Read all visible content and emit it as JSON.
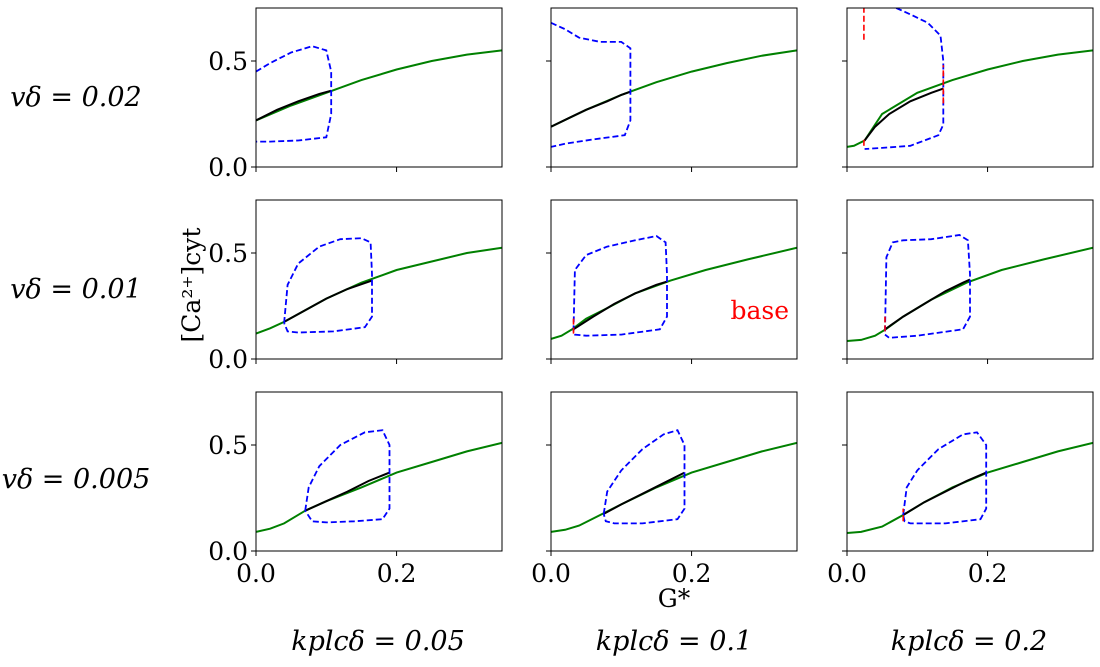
{
  "figure": {
    "y_axis_label": "[Ca²⁺]cyt",
    "x_axis_label": "G*",
    "annotation": "base"
  },
  "rows": [
    {
      "label": "vδ = 0.02"
    },
    {
      "label": "vδ = 0.01"
    },
    {
      "label": "vδ = 0.005"
    }
  ],
  "cols": [
    {
      "label": "kplcδ = 0.05"
    },
    {
      "label": "kplcδ = 0.1"
    },
    {
      "label": "kplcδ = 0.2"
    }
  ],
  "ticks": {
    "x": [
      "0.0",
      "0.2"
    ],
    "y": [
      "0.0",
      "0.5"
    ]
  },
  "colors": {
    "stable": "#008000",
    "unstable": "#000000",
    "periodic": "#0000ff",
    "other_branch": "#ff0000",
    "annotation": "#ff0000"
  },
  "chart_data": [
    {
      "type": "line",
      "row": 0,
      "col": 0,
      "xlim": [
        0,
        0.35
      ],
      "ylim": [
        0,
        0.75
      ],
      "green": [
        [
          0,
          0.22
        ],
        [
          0.05,
          0.29
        ],
        [
          0.1,
          0.35
        ],
        [
          0.15,
          0.41
        ],
        [
          0.2,
          0.46
        ],
        [
          0.25,
          0.5
        ],
        [
          0.3,
          0.53
        ],
        [
          0.35,
          0.55
        ]
      ],
      "black": [
        [
          0,
          0.22
        ],
        [
          0.03,
          0.27
        ],
        [
          0.06,
          0.31
        ],
        [
          0.09,
          0.345
        ],
        [
          0.107,
          0.36
        ]
      ],
      "blue": [
        [
          0,
          0.45
        ],
        [
          0.02,
          0.49
        ],
        [
          0.05,
          0.54
        ],
        [
          0.08,
          0.57
        ],
        [
          0.1,
          0.55
        ],
        [
          0.107,
          0.45
        ],
        [
          0.107,
          0.25
        ],
        [
          0.1,
          0.14
        ],
        [
          0.06,
          0.125
        ],
        [
          0.02,
          0.12
        ],
        [
          0,
          0.12
        ]
      ],
      "red": []
    },
    {
      "type": "line",
      "row": 0,
      "col": 1,
      "xlim": [
        0,
        0.35
      ],
      "ylim": [
        0,
        0.75
      ],
      "green": [
        [
          0,
          0.19
        ],
        [
          0.05,
          0.27
        ],
        [
          0.1,
          0.34
        ],
        [
          0.15,
          0.4
        ],
        [
          0.2,
          0.45
        ],
        [
          0.25,
          0.49
        ],
        [
          0.3,
          0.525
        ],
        [
          0.35,
          0.55
        ]
      ],
      "black": [
        [
          0,
          0.19
        ],
        [
          0.025,
          0.23
        ],
        [
          0.05,
          0.27
        ],
        [
          0.08,
          0.31
        ],
        [
          0.1,
          0.34
        ],
        [
          0.113,
          0.355
        ]
      ],
      "blue": [
        [
          0,
          0.68
        ],
        [
          0.02,
          0.65
        ],
        [
          0.04,
          0.61
        ],
        [
          0.07,
          0.59
        ],
        [
          0.1,
          0.59
        ],
        [
          0.113,
          0.56
        ],
        [
          0.113,
          0.22
        ],
        [
          0.105,
          0.15
        ],
        [
          0.06,
          0.13
        ],
        [
          0.02,
          0.11
        ],
        [
          0,
          0.095
        ]
      ],
      "red": []
    },
    {
      "type": "line",
      "row": 0,
      "col": 2,
      "xlim": [
        0,
        0.35
      ],
      "ylim": [
        0,
        0.75
      ],
      "green": [
        [
          0,
          0.095
        ],
        [
          0.01,
          0.1
        ],
        [
          0.025,
          0.125
        ],
        [
          0.05,
          0.25
        ],
        [
          0.1,
          0.35
        ],
        [
          0.15,
          0.41
        ],
        [
          0.2,
          0.46
        ],
        [
          0.25,
          0.5
        ],
        [
          0.3,
          0.53
        ],
        [
          0.35,
          0.55
        ]
      ],
      "black": [
        [
          0.025,
          0.125
        ],
        [
          0.04,
          0.19
        ],
        [
          0.06,
          0.25
        ],
        [
          0.09,
          0.31
        ],
        [
          0.12,
          0.35
        ],
        [
          0.137,
          0.37
        ]
      ],
      "blue": [
        [
          0.07,
          0.75
        ],
        [
          0.09,
          0.72
        ],
        [
          0.115,
          0.68
        ],
        [
          0.133,
          0.62
        ],
        [
          0.137,
          0.5
        ],
        [
          0.137,
          0.2
        ],
        [
          0.13,
          0.15
        ],
        [
          0.09,
          0.1
        ],
        [
          0.05,
          0.09
        ],
        [
          0.025,
          0.085
        ]
      ],
      "red": [
        [
          [
            0.024,
            0.6
          ],
          [
            0.024,
            0.75
          ]
        ],
        [
          [
            0.137,
            0.3
          ],
          [
            0.137,
            0.48
          ]
        ],
        [
          [
            0.024,
            0.1
          ],
          [
            0.024,
            0.135
          ]
        ]
      ]
    },
    {
      "type": "line",
      "row": 1,
      "col": 0,
      "xlim": [
        0,
        0.35
      ],
      "ylim": [
        0,
        0.75
      ],
      "green": [
        [
          0,
          0.12
        ],
        [
          0.02,
          0.145
        ],
        [
          0.04,
          0.175
        ],
        [
          0.07,
          0.23
        ],
        [
          0.1,
          0.285
        ],
        [
          0.15,
          0.36
        ],
        [
          0.2,
          0.42
        ],
        [
          0.25,
          0.46
        ],
        [
          0.3,
          0.5
        ],
        [
          0.35,
          0.525
        ]
      ],
      "black": [
        [
          0.04,
          0.175
        ],
        [
          0.07,
          0.23
        ],
        [
          0.1,
          0.285
        ],
        [
          0.13,
          0.33
        ],
        [
          0.165,
          0.37
        ]
      ],
      "blue": [
        [
          0.04,
          0.17
        ],
        [
          0.045,
          0.35
        ],
        [
          0.06,
          0.45
        ],
        [
          0.09,
          0.53
        ],
        [
          0.12,
          0.565
        ],
        [
          0.15,
          0.57
        ],
        [
          0.163,
          0.55
        ],
        [
          0.165,
          0.4
        ],
        [
          0.165,
          0.2
        ],
        [
          0.155,
          0.15
        ],
        [
          0.11,
          0.13
        ],
        [
          0.06,
          0.125
        ],
        [
          0.045,
          0.13
        ],
        [
          0.04,
          0.17
        ]
      ],
      "red": []
    },
    {
      "type": "line",
      "row": 1,
      "col": 1,
      "xlim": [
        0,
        0.35
      ],
      "ylim": [
        0,
        0.75
      ],
      "green": [
        [
          0,
          0.095
        ],
        [
          0.015,
          0.11
        ],
        [
          0.03,
          0.14
        ],
        [
          0.05,
          0.19
        ],
        [
          0.08,
          0.24
        ],
        [
          0.12,
          0.31
        ],
        [
          0.17,
          0.37
        ],
        [
          0.22,
          0.42
        ],
        [
          0.28,
          0.47
        ],
        [
          0.35,
          0.525
        ]
      ],
      "black": [
        [
          0.032,
          0.14
        ],
        [
          0.06,
          0.2
        ],
        [
          0.09,
          0.26
        ],
        [
          0.12,
          0.31
        ],
        [
          0.15,
          0.35
        ],
        [
          0.165,
          0.365
        ]
      ],
      "blue": [
        [
          0.032,
          0.13
        ],
        [
          0.034,
          0.42
        ],
        [
          0.05,
          0.49
        ],
        [
          0.08,
          0.53
        ],
        [
          0.12,
          0.56
        ],
        [
          0.15,
          0.58
        ],
        [
          0.163,
          0.55
        ],
        [
          0.165,
          0.4
        ],
        [
          0.165,
          0.2
        ],
        [
          0.155,
          0.14
        ],
        [
          0.1,
          0.115
        ],
        [
          0.05,
          0.11
        ],
        [
          0.034,
          0.115
        ],
        [
          0.032,
          0.13
        ]
      ],
      "red": [
        [
          [
            0.032,
            0.12
          ],
          [
            0.032,
            0.2
          ]
        ]
      ]
    },
    {
      "type": "line",
      "row": 1,
      "col": 2,
      "xlim": [
        0,
        0.35
      ],
      "ylim": [
        0,
        0.75
      ],
      "green": [
        [
          0,
          0.085
        ],
        [
          0.02,
          0.09
        ],
        [
          0.04,
          0.11
        ],
        [
          0.055,
          0.14
        ],
        [
          0.08,
          0.2
        ],
        [
          0.12,
          0.28
        ],
        [
          0.17,
          0.36
        ],
        [
          0.22,
          0.42
        ],
        [
          0.28,
          0.47
        ],
        [
          0.35,
          0.525
        ]
      ],
      "black": [
        [
          0.054,
          0.14
        ],
        [
          0.08,
          0.2
        ],
        [
          0.11,
          0.26
        ],
        [
          0.14,
          0.32
        ],
        [
          0.165,
          0.36
        ],
        [
          0.175,
          0.375
        ]
      ],
      "blue": [
        [
          0.054,
          0.13
        ],
        [
          0.056,
          0.48
        ],
        [
          0.065,
          0.55
        ],
        [
          0.08,
          0.56
        ],
        [
          0.12,
          0.565
        ],
        [
          0.16,
          0.585
        ],
        [
          0.172,
          0.56
        ],
        [
          0.175,
          0.4
        ],
        [
          0.175,
          0.2
        ],
        [
          0.165,
          0.14
        ],
        [
          0.1,
          0.11
        ],
        [
          0.06,
          0.1
        ],
        [
          0.054,
          0.115
        ]
      ],
      "red": [
        [
          [
            0.054,
            0.13
          ],
          [
            0.054,
            0.2
          ]
        ]
      ]
    },
    {
      "type": "line",
      "row": 2,
      "col": 0,
      "xlim": [
        0,
        0.35
      ],
      "ylim": [
        0,
        0.75
      ],
      "green": [
        [
          0,
          0.09
        ],
        [
          0.02,
          0.105
        ],
        [
          0.04,
          0.13
        ],
        [
          0.07,
          0.19
        ],
        [
          0.1,
          0.235
        ],
        [
          0.15,
          0.3
        ],
        [
          0.2,
          0.37
        ],
        [
          0.25,
          0.42
        ],
        [
          0.3,
          0.47
        ],
        [
          0.35,
          0.51
        ]
      ],
      "black": [
        [
          0.07,
          0.19
        ],
        [
          0.1,
          0.235
        ],
        [
          0.13,
          0.28
        ],
        [
          0.16,
          0.33
        ],
        [
          0.19,
          0.37
        ]
      ],
      "blue": [
        [
          0.07,
          0.19
        ],
        [
          0.075,
          0.3
        ],
        [
          0.09,
          0.4
        ],
        [
          0.12,
          0.5
        ],
        [
          0.155,
          0.56
        ],
        [
          0.18,
          0.57
        ],
        [
          0.19,
          0.5
        ],
        [
          0.19,
          0.2
        ],
        [
          0.18,
          0.15
        ],
        [
          0.14,
          0.14
        ],
        [
          0.1,
          0.135
        ],
        [
          0.08,
          0.14
        ],
        [
          0.07,
          0.19
        ]
      ],
      "red": []
    },
    {
      "type": "line",
      "row": 2,
      "col": 1,
      "xlim": [
        0,
        0.35
      ],
      "ylim": [
        0,
        0.75
      ],
      "green": [
        [
          0,
          0.09
        ],
        [
          0.02,
          0.1
        ],
        [
          0.04,
          0.12
        ],
        [
          0.07,
          0.17
        ],
        [
          0.1,
          0.22
        ],
        [
          0.15,
          0.3
        ],
        [
          0.2,
          0.37
        ],
        [
          0.25,
          0.42
        ],
        [
          0.3,
          0.47
        ],
        [
          0.35,
          0.51
        ]
      ],
      "black": [
        [
          0.075,
          0.175
        ],
        [
          0.1,
          0.22
        ],
        [
          0.13,
          0.27
        ],
        [
          0.16,
          0.32
        ],
        [
          0.19,
          0.37
        ]
      ],
      "blue": [
        [
          0.075,
          0.175
        ],
        [
          0.08,
          0.28
        ],
        [
          0.1,
          0.38
        ],
        [
          0.13,
          0.48
        ],
        [
          0.16,
          0.55
        ],
        [
          0.18,
          0.57
        ],
        [
          0.19,
          0.5
        ],
        [
          0.19,
          0.2
        ],
        [
          0.18,
          0.15
        ],
        [
          0.13,
          0.13
        ],
        [
          0.09,
          0.13
        ],
        [
          0.078,
          0.14
        ],
        [
          0.075,
          0.175
        ]
      ],
      "red": []
    },
    {
      "type": "line",
      "row": 2,
      "col": 2,
      "xlim": [
        0,
        0.35
      ],
      "ylim": [
        0,
        0.75
      ],
      "green": [
        [
          0,
          0.085
        ],
        [
          0.02,
          0.09
        ],
        [
          0.05,
          0.115
        ],
        [
          0.08,
          0.17
        ],
        [
          0.11,
          0.23
        ],
        [
          0.15,
          0.3
        ],
        [
          0.2,
          0.37
        ],
        [
          0.25,
          0.42
        ],
        [
          0.3,
          0.47
        ],
        [
          0.35,
          0.51
        ]
      ],
      "black": [
        [
          0.08,
          0.17
        ],
        [
          0.11,
          0.23
        ],
        [
          0.14,
          0.28
        ],
        [
          0.17,
          0.33
        ],
        [
          0.198,
          0.37
        ]
      ],
      "blue": [
        [
          0.08,
          0.17
        ],
        [
          0.085,
          0.3
        ],
        [
          0.1,
          0.38
        ],
        [
          0.13,
          0.48
        ],
        [
          0.165,
          0.55
        ],
        [
          0.185,
          0.56
        ],
        [
          0.198,
          0.5
        ],
        [
          0.198,
          0.2
        ],
        [
          0.19,
          0.15
        ],
        [
          0.14,
          0.13
        ],
        [
          0.09,
          0.13
        ],
        [
          0.082,
          0.14
        ],
        [
          0.08,
          0.17
        ]
      ],
      "red": [
        [
          [
            0.08,
            0.14
          ],
          [
            0.08,
            0.2
          ]
        ]
      ]
    }
  ]
}
